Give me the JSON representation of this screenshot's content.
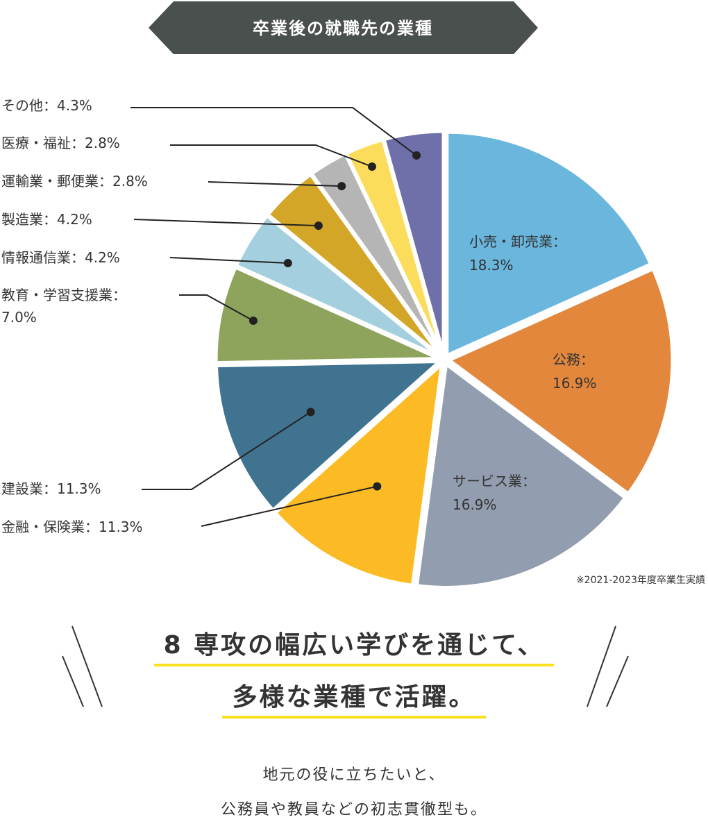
{
  "banner": {
    "title": "卒業後の就職先の業種",
    "color": "#4a504e"
  },
  "chart_data": {
    "type": "pie",
    "title": "卒業後の就職先の業種",
    "note": "※2021-2023年度卒業生実績",
    "slices": [
      {
        "name": "小売・卸売業",
        "value": 18.3,
        "color": "#6ab6dd",
        "label": [
          "小売・卸売業：",
          "18.3%"
        ]
      },
      {
        "name": "公務",
        "value": 16.9,
        "color": "#e3873c",
        "label": [
          "公務：",
          "16.9%"
        ]
      },
      {
        "name": "サービス業",
        "value": 16.9,
        "color": "#929daf",
        "label": [
          "サービス業：",
          "16.9%"
        ]
      },
      {
        "name": "金融・保険業",
        "value": 11.3,
        "color": "#fcbb25",
        "label": [
          "金融・保険業：11.3%"
        ]
      },
      {
        "name": "建設業",
        "value": 11.3,
        "color": "#3f7390",
        "label": [
          "建設業：11.3%"
        ]
      },
      {
        "name": "教育・学習支援業",
        "value": 7.0,
        "color": "#8ea35b",
        "label": [
          "教育・学習支援業：",
          "7.0%"
        ]
      },
      {
        "name": "情報通信業",
        "value": 4.2,
        "color": "#a3cfde",
        "label": [
          "情報通信業：4.2%"
        ]
      },
      {
        "name": "製造業",
        "value": 4.2,
        "color": "#d4a628",
        "label": [
          "製造業：4.2%"
        ]
      },
      {
        "name": "運輸業・郵便業",
        "value": 2.8,
        "color": "#b5b5b5",
        "label": [
          "運輸業・郵便業：2.8%"
        ]
      },
      {
        "name": "医療・福祉",
        "value": 2.8,
        "color": "#fbdc5b",
        "label": [
          "医療・福祉：2.8%"
        ]
      },
      {
        "name": "その他",
        "value": 4.3,
        "color": "#6f70aa",
        "label": [
          "その他：4.3%"
        ]
      }
    ]
  },
  "headline": {
    "line1": "8 専攻の幅広い学びを通じて、",
    "line2": "多様な業種で活躍。",
    "underline_color": "#f7e11d"
  },
  "description": {
    "line1": "地元の役に立ちたいと、",
    "line2": "公務員や教員などの初志貫徹型も。"
  }
}
